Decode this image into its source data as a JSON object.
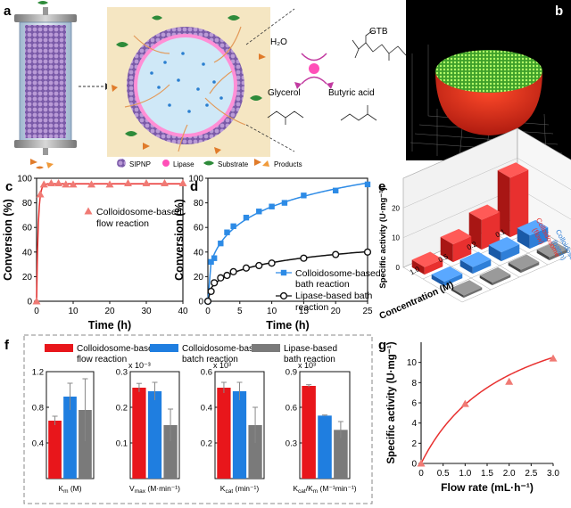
{
  "panels": {
    "a": {
      "letter": "a",
      "h2o": "H₂O",
      "gtb": "GTB",
      "glycerol": "Glycerol",
      "butyric": "Butyric acid",
      "legend": [
        "SIPNP",
        "Lipase",
        "Substrate",
        "Products"
      ]
    },
    "b": {
      "letter": "b"
    },
    "c": {
      "letter": "c"
    },
    "d": {
      "letter": "d"
    },
    "e": {
      "letter": "e",
      "ylabel": "Specific activity (U·mg⁻¹)",
      "xlabel": "Concentration (M)",
      "zticks": [
        "0",
        "10",
        "20"
      ],
      "conc_ticks": [
        "1.0",
        "0.5",
        "0.2",
        "0.1"
      ],
      "series_labels": [
        {
          "l1": "Colloidosome",
          "l2": "(flow)",
          "color": "#e8302f"
        },
        {
          "l1": "Colloidosome",
          "l2": "(batch)",
          "color": "#2f7fd8"
        },
        {
          "l1": "Lipase",
          "l2": "(flow)",
          "color": "#6e6e6e"
        }
      ]
    },
    "f": {
      "letter": "f",
      "legend": [
        {
          "l1": "Colloidosome-based",
          "l2": "flow reaction",
          "color": "#e8161b"
        },
        {
          "l1": "Colloidosome-based",
          "l2": "batch reaction",
          "color": "#1f7ee0"
        },
        {
          "l1": "Lipase-based",
          "l2": "bath reaction",
          "color": "#7a7a7a"
        }
      ]
    },
    "g": {
      "letter": "g"
    }
  },
  "chart_data": [
    {
      "id": "c",
      "type": "scatter",
      "xlabel": "Time (h)",
      "ylabel": "Conversion (%)",
      "xlim": [
        0,
        40
      ],
      "ylim": [
        0,
        100
      ],
      "xticks": [
        0,
        10,
        20,
        30,
        40
      ],
      "yticks": [
        0,
        20,
        40,
        60,
        80,
        100
      ],
      "series": [
        {
          "name": "Colloidosome-based flow reaction",
          "legend_l1": "Colloidosome-based",
          "legend_l2": "flow reaction",
          "color": "#f07a74",
          "marker": "triangle",
          "x": [
            0,
            1,
            2,
            4,
            6,
            8,
            10,
            15,
            20,
            25,
            30,
            35,
            40
          ],
          "y": [
            0,
            87,
            95,
            96,
            96,
            95,
            95,
            95,
            95,
            96,
            96,
            96,
            96
          ]
        }
      ]
    },
    {
      "id": "d",
      "type": "scatter",
      "xlabel": "Time (h)",
      "ylabel": "Conversion (%)",
      "xlim": [
        0,
        25
      ],
      "ylim": [
        0,
        100
      ],
      "xticks": [
        0,
        5,
        10,
        15,
        20,
        25
      ],
      "yticks": [
        0,
        20,
        40,
        60,
        80,
        100
      ],
      "series": [
        {
          "name": "Colloidosome-based bath reaction",
          "legend_l1": "Colloidosome-based",
          "legend_l2": "bath reaction",
          "color": "#2d8be6",
          "marker": "square",
          "x": [
            0,
            0.5,
            1,
            2,
            3,
            4,
            6,
            8,
            10,
            12,
            15,
            20,
            25
          ],
          "y": [
            0,
            32,
            35,
            47,
            56,
            61,
            68,
            73,
            77,
            80,
            86,
            90,
            95
          ]
        },
        {
          "name": "Lipase-based bath reaction",
          "legend_l1": "Lipase-based bath",
          "legend_l2": "reaction",
          "color": "#111111",
          "marker": "circle",
          "x": [
            0,
            0.5,
            1,
            2,
            3,
            4,
            6,
            8,
            10,
            15,
            20,
            25
          ],
          "y": [
            0,
            8,
            15,
            19,
            21,
            24,
            27,
            29,
            31,
            35,
            38,
            40
          ]
        }
      ]
    },
    {
      "id": "e",
      "type": "bar3d",
      "zlim": [
        0,
        30
      ],
      "concentrations": [
        "1.0",
        "0.5",
        "0.2",
        "0.1"
      ],
      "series": [
        {
          "name": "Colloidosome (flow)",
          "values": [
            2.5,
            6,
            10,
            20
          ]
        },
        {
          "name": "Colloidosome (batch)",
          "values": [
            1.5,
            2.2,
            3,
            4.5
          ]
        },
        {
          "name": "Lipase (flow)",
          "values": [
            0.8,
            0.9,
            1,
            1.1
          ]
        }
      ]
    },
    {
      "id": "f",
      "type": "bar",
      "subplots": [
        {
          "xlabel": "K_m (M)",
          "xl_sym": "K",
          "xl_sub": "m",
          "xl_unit": " (M)",
          "exponent": "",
          "ylim": [
            0,
            1.2
          ],
          "yticks": [
            "0.4",
            "0.8",
            "1.2"
          ],
          "ytick_values": [
            0.4,
            0.8,
            1.2
          ],
          "values": [
            0.65,
            0.92,
            0.77
          ],
          "errors": [
            0.05,
            0.15,
            0.35
          ]
        },
        {
          "xlabel": "V_max (M·min⁻¹)",
          "xl_sym": "V",
          "xl_sub": "max",
          "xl_unit": " (M·min⁻¹)",
          "exponent": "x 10⁻³",
          "ylim": [
            0,
            0.3
          ],
          "yticks": [
            "0.1",
            "0.2",
            "0.3"
          ],
          "ytick_values": [
            0.1,
            0.2,
            0.3
          ],
          "values": [
            0.255,
            0.245,
            0.15
          ],
          "errors": [
            0.012,
            0.025,
            0.045
          ]
        },
        {
          "xlabel": "K_cat (min⁻¹)",
          "xl_sym": "K",
          "xl_sub": "cat",
          "xl_unit": " (min⁻¹)",
          "exponent": "x 10³",
          "ylim": [
            0,
            0.6
          ],
          "yticks": [
            "0.2",
            "0.4",
            "0.6"
          ],
          "ytick_values": [
            0.2,
            0.4,
            0.6
          ],
          "values": [
            0.51,
            0.49,
            0.3
          ],
          "errors": [
            0.03,
            0.05,
            0.1
          ]
        },
        {
          "xlabel": "K_cat/K_m (M⁻¹min⁻¹)",
          "xl_sym": "K",
          "xl_sub": "cat",
          "xl_mid": "/K",
          "xl_sub2": "m",
          "xl_unit": " (M⁻¹min⁻¹)",
          "exponent": "x 10³",
          "ylim": [
            0,
            0.9
          ],
          "yticks": [
            "0.3",
            "0.6",
            "0.9"
          ],
          "ytick_values": [
            0.3,
            0.6,
            0.9
          ],
          "values": [
            0.78,
            0.53,
            0.41
          ],
          "errors": [
            0.01,
            0.005,
            0.07
          ]
        }
      ]
    },
    {
      "id": "g",
      "type": "scatter",
      "xlabel": "Flow rate (mL·h⁻¹)",
      "ylabel": "Specific activity (U·mg⁻¹)",
      "xlim": [
        0,
        3
      ],
      "ylim": [
        0,
        12
      ],
      "xticks": [
        "0",
        "0.5",
        "1.0",
        "1.5",
        "2.0",
        "2.5",
        "3.0"
      ],
      "xtick_values": [
        0,
        0.5,
        1,
        1.5,
        2,
        2.5,
        3
      ],
      "yticks": [
        0,
        2,
        4,
        6,
        8,
        10
      ],
      "series": [
        {
          "name": "Specific activity",
          "color": "#f07a74",
          "marker": "triangle",
          "x": [
            0,
            1,
            2,
            3
          ],
          "y": [
            0,
            5.9,
            8.1,
            10.4
          ]
        }
      ]
    }
  ]
}
